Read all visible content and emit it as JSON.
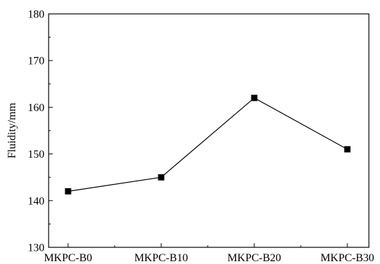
{
  "chart_data": {
    "type": "line",
    "title": "",
    "xlabel": "",
    "ylabel": "Fluidity/mm",
    "categories": [
      "MKPC-B0",
      "MKPC-B10",
      "MKPC-B20",
      "MKPC-B30"
    ],
    "series": [
      {
        "values": [
          142,
          145,
          162,
          151
        ]
      }
    ],
    "ylim": [
      130,
      180
    ],
    "yticks": [
      130,
      140,
      150,
      160,
      170,
      180
    ],
    "grid": false,
    "legend": "none",
    "colors": {
      "line": "#000000",
      "marker": "#000000"
    }
  }
}
